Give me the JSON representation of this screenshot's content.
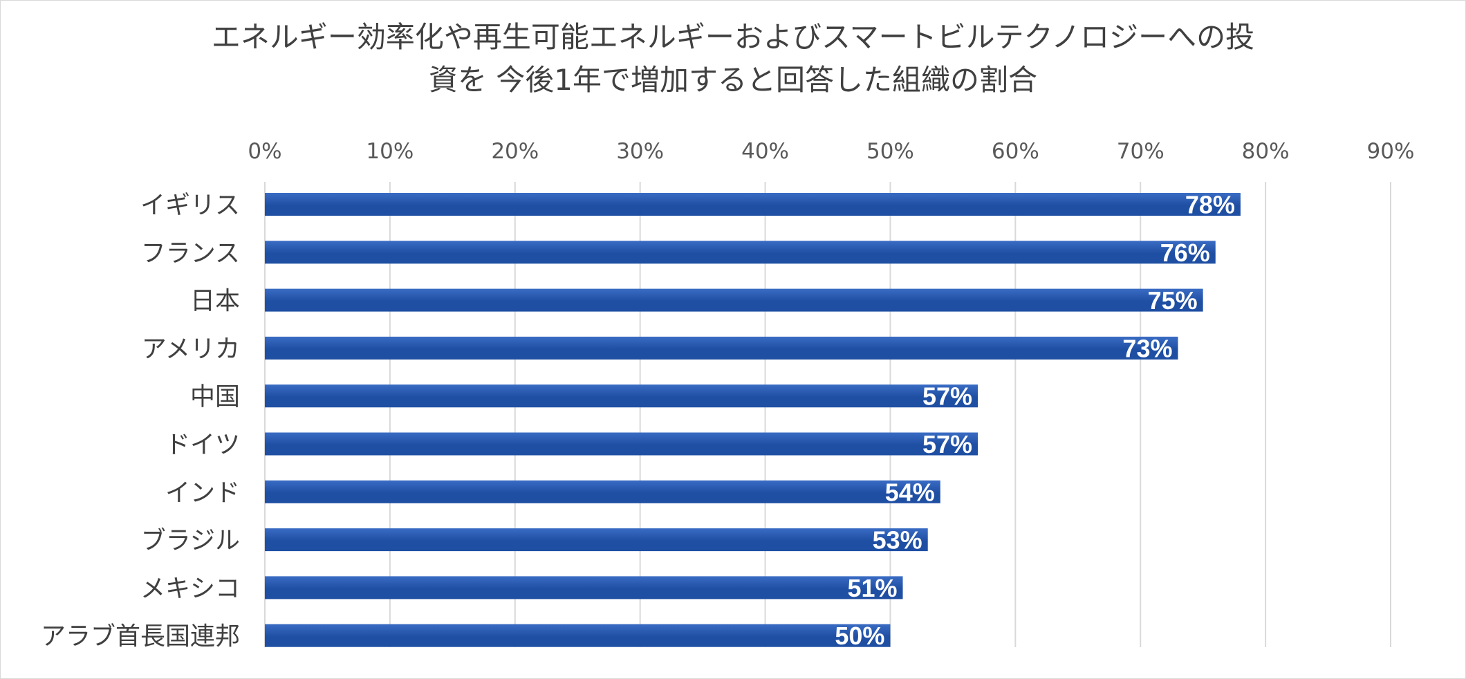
{
  "chart_data": {
    "type": "bar",
    "orientation": "horizontal",
    "title": [
      "エネルギー効率化や再生可能エネルギーおよびスマートビルテクノロジーへの投",
      "資を 今後1年で増加すると回答した組織の割合"
    ],
    "categories": [
      "イギリス",
      "フランス",
      "日本",
      "アメリカ",
      "中国",
      "ドイツ",
      "インド",
      "ブラジル",
      "メキシコ",
      "アラブ首長国連邦"
    ],
    "values": [
      78,
      76,
      75,
      73,
      57,
      57,
      54,
      53,
      51,
      50
    ],
    "value_labels": [
      "78%",
      "76%",
      "75%",
      "73%",
      "57%",
      "57%",
      "54%",
      "53%",
      "51%",
      "50%"
    ],
    "x_ticks": [
      "0%",
      "10%",
      "20%",
      "30%",
      "40%",
      "50%",
      "60%",
      "70%",
      "80%",
      "90%"
    ],
    "xlim": [
      0,
      90
    ],
    "x_axis_position": "top",
    "grid": true,
    "bar_color": "#1f4fa3",
    "bar_color_light": "#3a6cc4",
    "grid_color": "#d9d9d9",
    "label_color": "#ffffff"
  }
}
